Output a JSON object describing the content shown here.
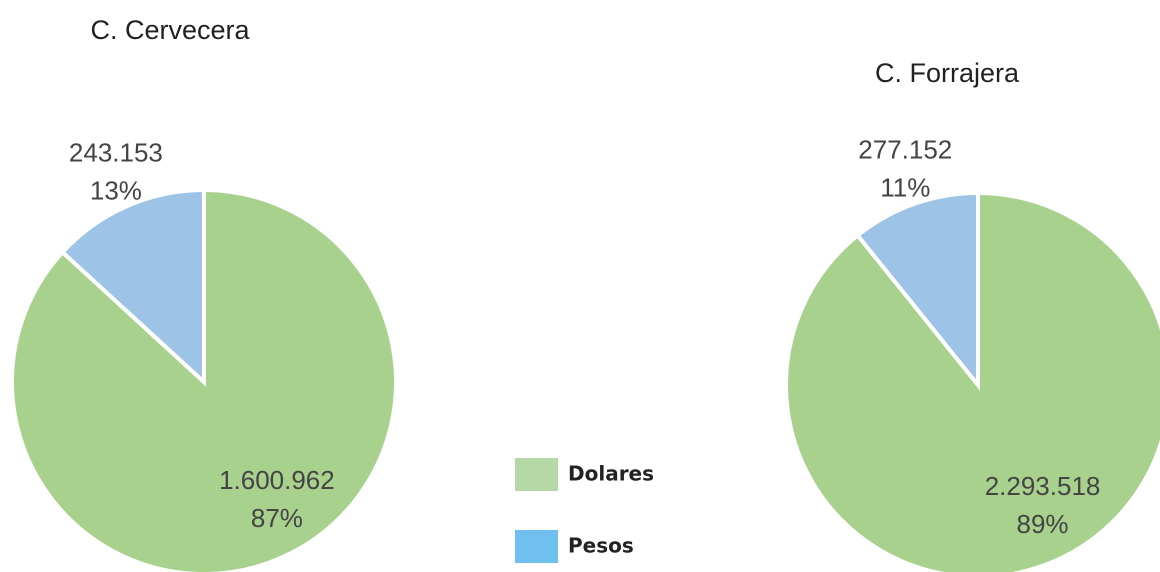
{
  "chart_data": [
    {
      "type": "pie",
      "title": "C. Cervecera",
      "categories": [
        "Dolares",
        "Pesos"
      ],
      "values": [
        1600962,
        243153
      ],
      "value_labels": [
        "1.600.962",
        "243.153"
      ],
      "percents": [
        87,
        13
      ],
      "percent_labels": [
        "87%",
        "13%"
      ],
      "colors": [
        "#a9d18e",
        "#9dc3e6"
      ]
    },
    {
      "type": "pie",
      "title": "C. Forrajera",
      "categories": [
        "Dolares",
        "Pesos"
      ],
      "values": [
        2293518,
        277152
      ],
      "value_labels": [
        "2.293.518",
        "277.152"
      ],
      "percents": [
        89,
        11
      ],
      "percent_labels": [
        "89%",
        "11%"
      ],
      "colors": [
        "#a9d18e",
        "#9dc3e6"
      ]
    }
  ],
  "legend_colors": [
    "#b4d9a6",
    "#6fc0ef"
  ]
}
